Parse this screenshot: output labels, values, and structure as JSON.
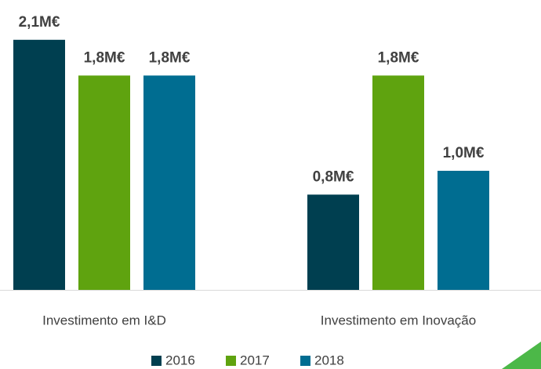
{
  "chart_data": {
    "type": "bar",
    "categories": [
      "Investimento em I&D",
      "Investimento em Inovação"
    ],
    "series": [
      {
        "name": "2016",
        "color": "#003f50",
        "values": [
          2.1,
          0.8
        ],
        "value_labels": [
          "2,1M€",
          "0,8M€"
        ]
      },
      {
        "name": "2017",
        "color": "#5fa30f",
        "values": [
          1.8,
          1.8
        ],
        "value_labels": [
          "1,8M€",
          "1,8M€"
        ]
      },
      {
        "name": "2018",
        "color": "#006d91",
        "values": [
          1.8,
          1.0
        ],
        "value_labels": [
          "1,8M€",
          "1,0M€"
        ]
      }
    ]
  }
}
